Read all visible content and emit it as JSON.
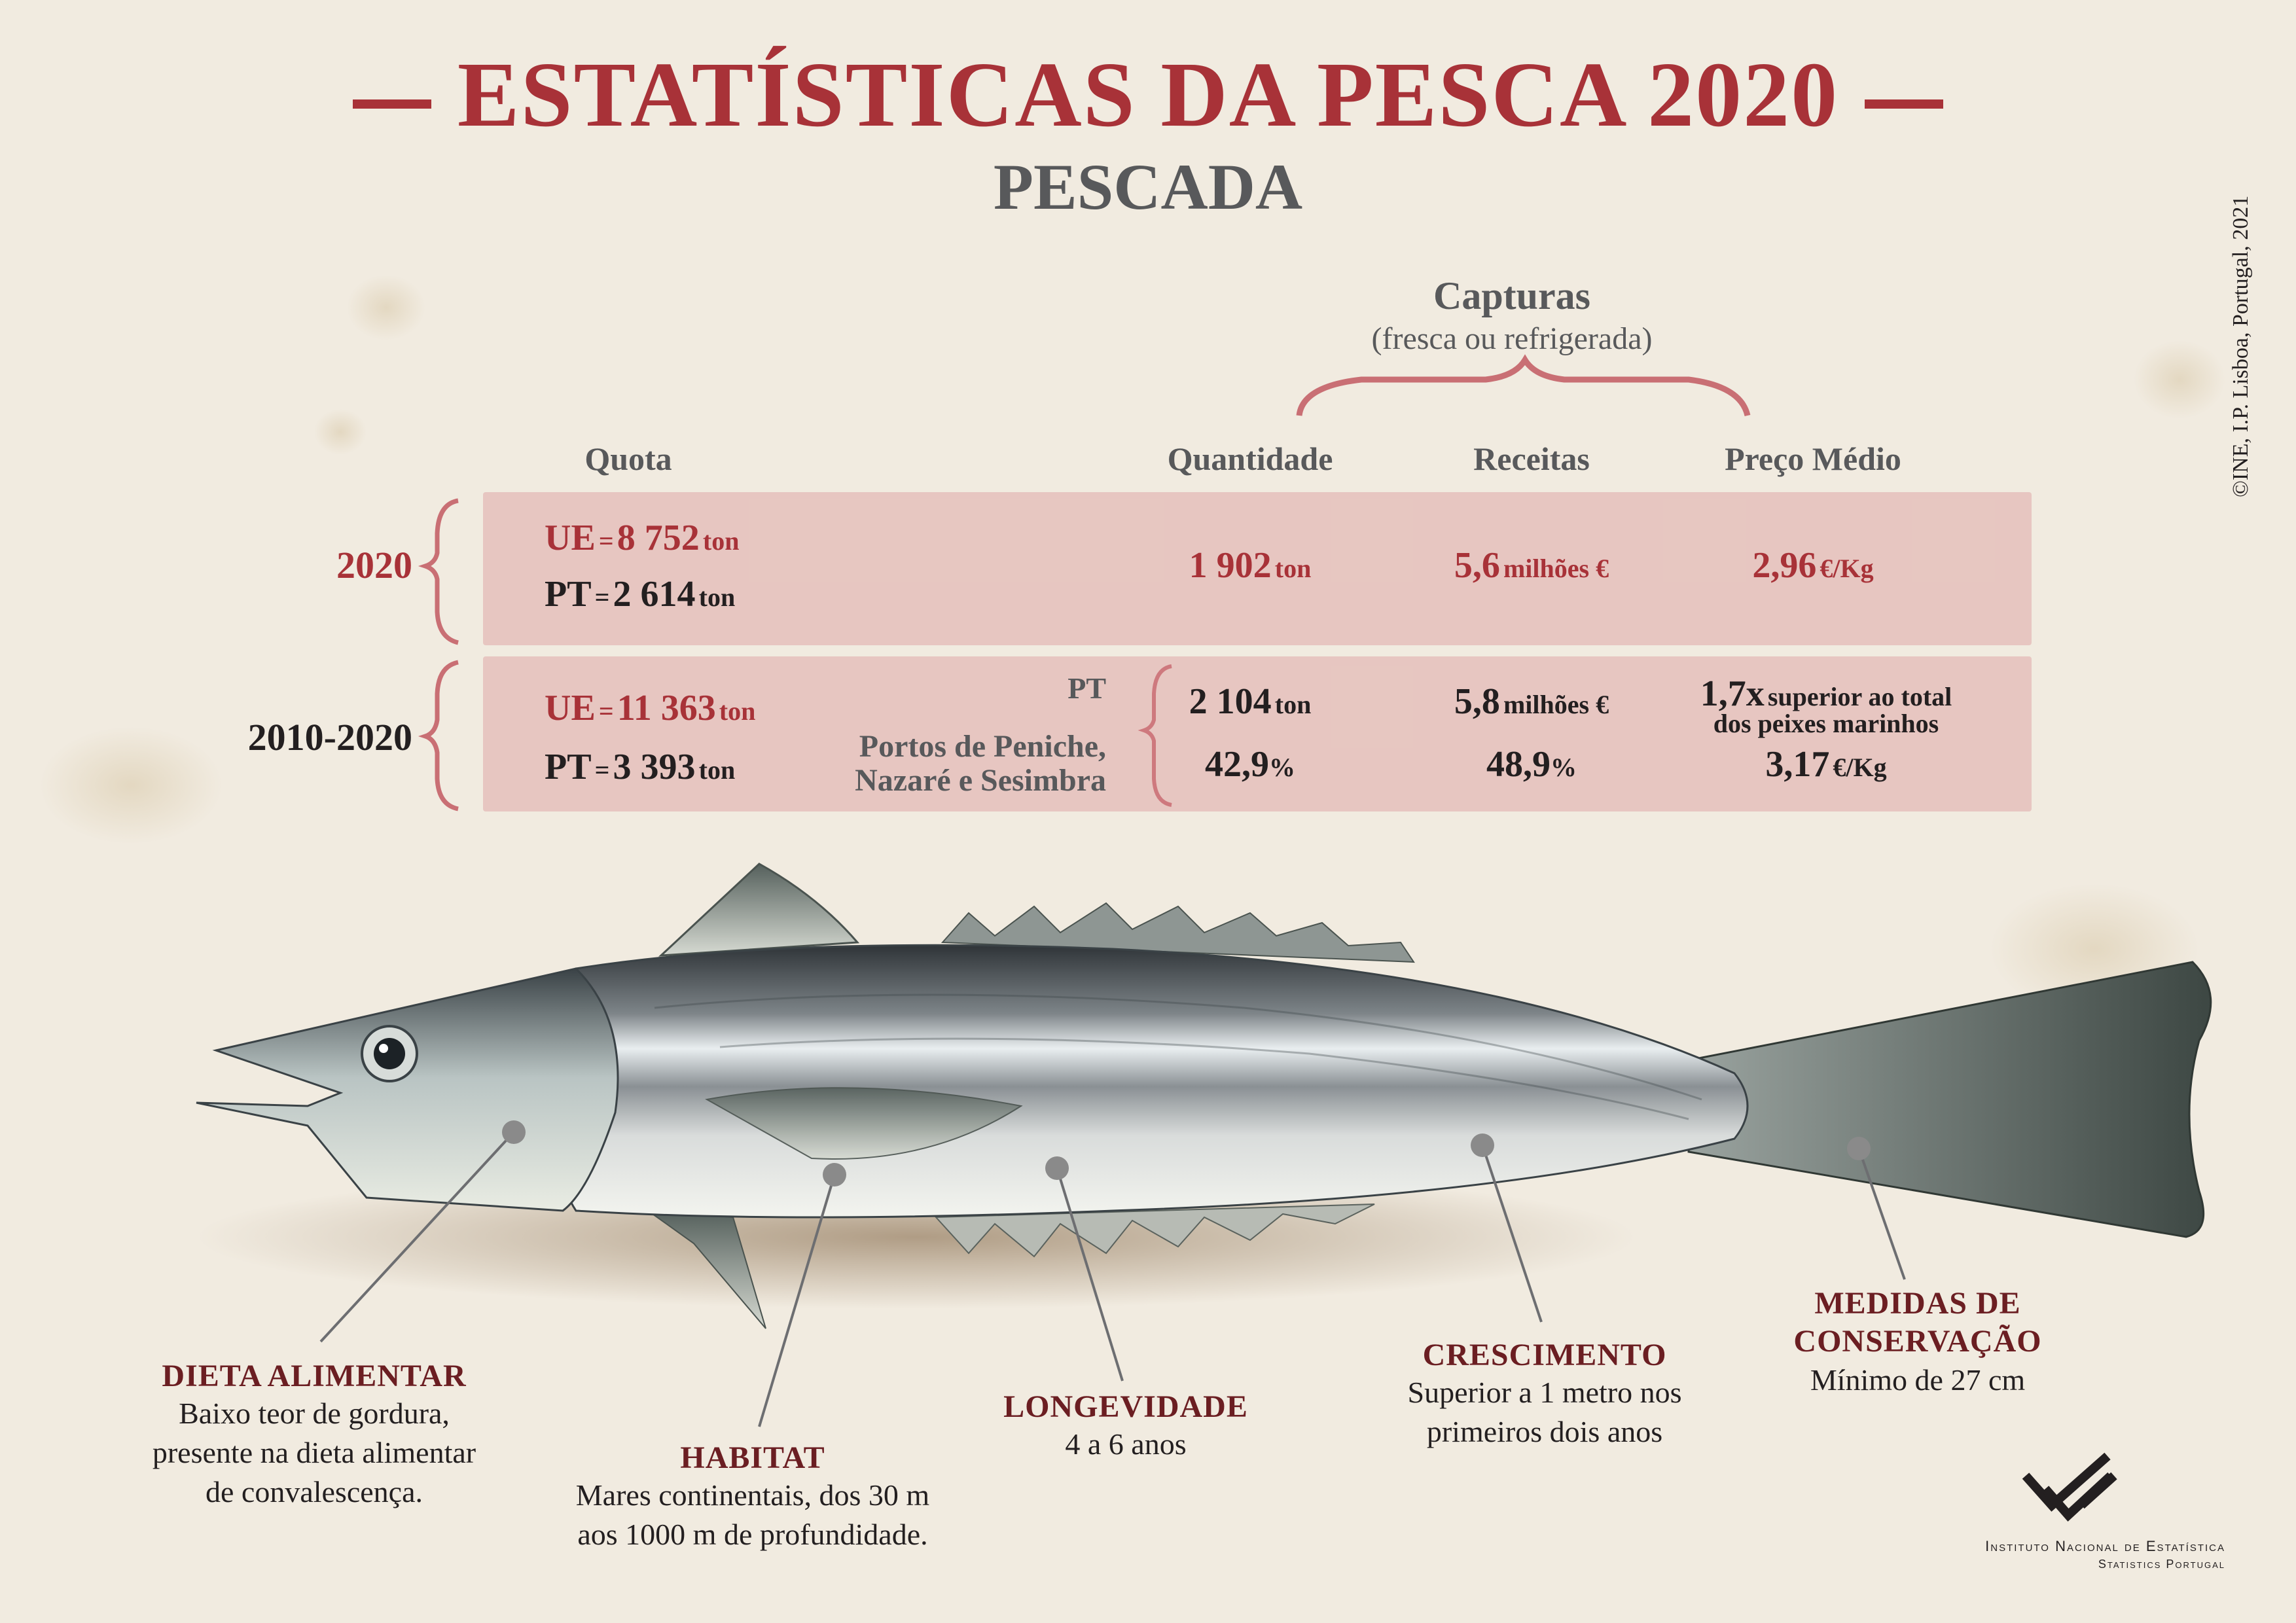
{
  "header": {
    "title": "ESTATÍSTICAS DA PESCA 2020",
    "subtitle": "PESCADA",
    "copyright": "©INE, I.P. Lisboa, Portugal, 2021"
  },
  "captures": {
    "title": "Capturas",
    "subtitle": "(fresca ou refrigerada)"
  },
  "columns": {
    "quota": "Quota",
    "quantity": "Quantidade",
    "revenue": "Receitas",
    "price": "Preço Médio"
  },
  "row_2020": {
    "year": "2020",
    "ue_label": "UE",
    "ue_eq": "=",
    "ue_value": "8 752",
    "ue_unit": "ton",
    "pt_label": "PT",
    "pt_eq": "=",
    "pt_value": "2 614",
    "pt_unit": "ton",
    "quantity_value": "1 902",
    "quantity_unit": "ton",
    "revenue_value": "5,6",
    "revenue_unit": "milhões €",
    "price_value": "2,96",
    "price_unit": "€/Kg"
  },
  "row_2010_2020": {
    "year": "2010-2020",
    "ue_label": "UE",
    "ue_eq": "=",
    "ue_value": "11 363",
    "ue_unit": "ton",
    "pt_label": "PT",
    "pt_eq": "=",
    "pt_value": "3 393",
    "pt_unit": "ton",
    "pt_tag": "PT",
    "ports_line1": "Portos de Peniche,",
    "ports_line2": "Nazaré e Sesimbra",
    "quantity_value": "2 104",
    "quantity_unit": "ton",
    "quantity_pct": "42,9",
    "pct_sign": "%",
    "revenue_value": "5,8",
    "revenue_unit": "milhões €",
    "revenue_pct": "48,9",
    "price_factor": "1,7x",
    "price_note1": "superior ao total",
    "price_note2": "dos peixes marinhos",
    "price_value": "3,17",
    "price_unit": "€/Kg"
  },
  "facts": {
    "diet": {
      "heading": "DIETA ALIMENTAR",
      "line1": "Baixo teor de gordura,",
      "line2": "presente na dieta alimentar",
      "line3": "de convalescença."
    },
    "habitat": {
      "heading": "HABITAT",
      "line1": "Mares continentais, dos 30 m",
      "line2": "aos 1000 m de profundidade."
    },
    "longevity": {
      "heading": "LONGEVIDADE",
      "line1": "4 a 6 anos"
    },
    "growth": {
      "heading": "CRESCIMENTO",
      "line1": "Superior a 1 metro nos",
      "line2": "primeiros dois anos"
    },
    "conservation": {
      "heading1": "MEDIDAS DE",
      "heading2": "CONSERVAÇÃO",
      "line1": "Mínimo de 27 cm"
    }
  },
  "footer": {
    "institute": "Instituto Nacional de Estatística",
    "english": "Statistics Portugal"
  },
  "colors": {
    "accent": "#a83238",
    "band": "#e6b9b8",
    "heading_dark_red": "#6b1e22",
    "grey_text": "#58595b"
  }
}
